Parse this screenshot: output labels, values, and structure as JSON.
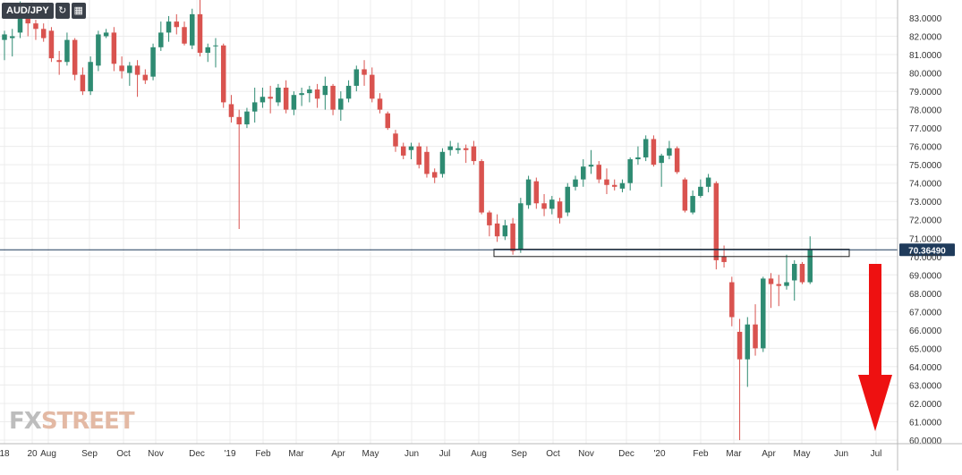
{
  "toolbar": {
    "symbol": "AUD/JPY",
    "refresh_icon": "refresh-icon",
    "calendar_icon": "calendar-icon"
  },
  "watermark": {
    "part1": "FX",
    "part2": "STREET"
  },
  "colors": {
    "up": "#2e8b72",
    "down": "#d9534f",
    "grid": "#ececec",
    "axis_text": "#333333",
    "price_line": "#1f3b5b",
    "arrow": "#ee1111"
  },
  "chart_data": {
    "type": "candlestick",
    "title": "",
    "xlabel": "",
    "ylabel": "",
    "ylim": [
      60,
      84
    ],
    "y_ticks": [
      "83.0000",
      "82.0000",
      "81.0000",
      "80.0000",
      "79.0000",
      "78.0000",
      "77.0000",
      "76.0000",
      "75.0000",
      "74.0000",
      "73.0000",
      "72.0000",
      "71.0000",
      "70.0000",
      "69.0000",
      "68.0000",
      "67.0000",
      "66.0000",
      "65.0000",
      "64.0000",
      "63.0000",
      "62.0000",
      "61.0000",
      "60.0000"
    ],
    "x_labels": [
      "18",
      "20",
      "Aug",
      "Sep",
      "Oct",
      "Nov",
      "Dec",
      "'19",
      "Feb",
      "Mar",
      "Apr",
      "May",
      "Jun",
      "Jul",
      "Aug",
      "Sep",
      "Oct",
      "Nov",
      "Dec",
      "'20",
      "Feb",
      "Mar",
      "Apr",
      "May",
      "Jun",
      "Jul"
    ],
    "current_price": 70.3649,
    "current_price_label": "70.36490",
    "support_zone": [
      70.0,
      70.4
    ],
    "candles": [
      {
        "o": 81.8,
        "h": 82.3,
        "l": 80.7,
        "c": 82.1
      },
      {
        "o": 81.9,
        "h": 82.4,
        "l": 80.9,
        "c": 82.0
      },
      {
        "o": 82.2,
        "h": 83.9,
        "l": 81.9,
        "c": 83.3
      },
      {
        "o": 83.3,
        "h": 83.6,
        "l": 82.0,
        "c": 82.7
      },
      {
        "o": 82.7,
        "h": 82.9,
        "l": 81.8,
        "c": 82.4
      },
      {
        "o": 82.4,
        "h": 82.7,
        "l": 81.7,
        "c": 81.9
      },
      {
        "o": 82.3,
        "h": 82.5,
        "l": 80.6,
        "c": 80.8
      },
      {
        "o": 80.7,
        "h": 81.2,
        "l": 79.9,
        "c": 80.6
      },
      {
        "o": 80.6,
        "h": 82.2,
        "l": 80.4,
        "c": 81.8
      },
      {
        "o": 81.8,
        "h": 81.9,
        "l": 79.6,
        "c": 79.9
      },
      {
        "o": 79.9,
        "h": 80.3,
        "l": 78.8,
        "c": 79.0
      },
      {
        "o": 79.0,
        "h": 80.9,
        "l": 78.8,
        "c": 80.6
      },
      {
        "o": 80.4,
        "h": 82.3,
        "l": 80.1,
        "c": 82.1
      },
      {
        "o": 82.0,
        "h": 82.4,
        "l": 81.9,
        "c": 82.2
      },
      {
        "o": 82.2,
        "h": 82.5,
        "l": 80.1,
        "c": 80.5
      },
      {
        "o": 80.4,
        "h": 80.9,
        "l": 79.7,
        "c": 80.1
      },
      {
        "o": 80.0,
        "h": 80.6,
        "l": 79.3,
        "c": 80.4
      },
      {
        "o": 80.4,
        "h": 80.7,
        "l": 78.7,
        "c": 79.9
      },
      {
        "o": 79.9,
        "h": 80.2,
        "l": 79.4,
        "c": 79.6
      },
      {
        "o": 79.8,
        "h": 81.6,
        "l": 79.6,
        "c": 81.4
      },
      {
        "o": 81.4,
        "h": 82.8,
        "l": 81.2,
        "c": 82.2
      },
      {
        "o": 82.2,
        "h": 83.1,
        "l": 81.7,
        "c": 82.8
      },
      {
        "o": 82.8,
        "h": 83.2,
        "l": 82.1,
        "c": 82.5
      },
      {
        "o": 82.5,
        "h": 82.8,
        "l": 81.5,
        "c": 81.6
      },
      {
        "o": 81.5,
        "h": 83.5,
        "l": 81.3,
        "c": 83.2
      },
      {
        "o": 83.2,
        "h": 84.0,
        "l": 80.9,
        "c": 81.1
      },
      {
        "o": 81.1,
        "h": 81.6,
        "l": 80.6,
        "c": 81.4
      },
      {
        "o": 81.5,
        "h": 81.9,
        "l": 80.3,
        "c": 81.5
      },
      {
        "o": 81.5,
        "h": 81.6,
        "l": 78.1,
        "c": 78.4
      },
      {
        "o": 78.3,
        "h": 78.8,
        "l": 77.3,
        "c": 77.6
      },
      {
        "o": 77.6,
        "h": 78.0,
        "l": 71.5,
        "c": 77.2
      },
      {
        "o": 77.2,
        "h": 78.1,
        "l": 77.0,
        "c": 77.9
      },
      {
        "o": 77.9,
        "h": 79.2,
        "l": 77.3,
        "c": 78.4
      },
      {
        "o": 78.4,
        "h": 79.2,
        "l": 78.1,
        "c": 78.7
      },
      {
        "o": 78.7,
        "h": 79.3,
        "l": 77.8,
        "c": 78.6
      },
      {
        "o": 78.4,
        "h": 79.4,
        "l": 78.2,
        "c": 79.2
      },
      {
        "o": 79.2,
        "h": 79.6,
        "l": 77.8,
        "c": 78.0
      },
      {
        "o": 78.0,
        "h": 79.0,
        "l": 77.7,
        "c": 78.8
      },
      {
        "o": 78.8,
        "h": 79.2,
        "l": 78.2,
        "c": 78.9
      },
      {
        "o": 78.9,
        "h": 79.3,
        "l": 78.4,
        "c": 79.1
      },
      {
        "o": 79.1,
        "h": 79.4,
        "l": 78.1,
        "c": 78.6
      },
      {
        "o": 78.8,
        "h": 79.8,
        "l": 78.0,
        "c": 79.3
      },
      {
        "o": 79.3,
        "h": 79.4,
        "l": 77.7,
        "c": 78.0
      },
      {
        "o": 78.0,
        "h": 79.0,
        "l": 77.4,
        "c": 78.6
      },
      {
        "o": 78.6,
        "h": 79.6,
        "l": 78.4,
        "c": 79.3
      },
      {
        "o": 79.3,
        "h": 80.4,
        "l": 79.0,
        "c": 80.2
      },
      {
        "o": 80.2,
        "h": 80.7,
        "l": 79.3,
        "c": 79.9
      },
      {
        "o": 79.9,
        "h": 80.3,
        "l": 78.4,
        "c": 78.6
      },
      {
        "o": 78.6,
        "h": 78.9,
        "l": 77.8,
        "c": 78.0
      },
      {
        "o": 77.8,
        "h": 77.9,
        "l": 76.9,
        "c": 77.0
      },
      {
        "o": 76.7,
        "h": 76.9,
        "l": 75.7,
        "c": 76.0
      },
      {
        "o": 76.0,
        "h": 76.2,
        "l": 75.3,
        "c": 75.5
      },
      {
        "o": 75.8,
        "h": 76.2,
        "l": 75.3,
        "c": 76.0
      },
      {
        "o": 76.0,
        "h": 76.2,
        "l": 74.8,
        "c": 75.0
      },
      {
        "o": 75.7,
        "h": 76.0,
        "l": 74.3,
        "c": 74.5
      },
      {
        "o": 74.6,
        "h": 74.8,
        "l": 74.0,
        "c": 74.3
      },
      {
        "o": 74.5,
        "h": 75.9,
        "l": 74.3,
        "c": 75.7
      },
      {
        "o": 75.8,
        "h": 76.3,
        "l": 75.5,
        "c": 76.0
      },
      {
        "o": 75.8,
        "h": 76.2,
        "l": 75.6,
        "c": 75.9
      },
      {
        "o": 75.9,
        "h": 76.1,
        "l": 75.1,
        "c": 75.8
      },
      {
        "o": 76.0,
        "h": 76.3,
        "l": 75.0,
        "c": 75.2
      },
      {
        "o": 75.2,
        "h": 75.3,
        "l": 72.3,
        "c": 72.4
      },
      {
        "o": 72.4,
        "h": 72.5,
        "l": 71.1,
        "c": 71.7
      },
      {
        "o": 71.8,
        "h": 72.3,
        "l": 70.8,
        "c": 71.1
      },
      {
        "o": 71.1,
        "h": 72.0,
        "l": 70.9,
        "c": 71.7
      },
      {
        "o": 71.8,
        "h": 72.1,
        "l": 70.1,
        "c": 70.3
      },
      {
        "o": 70.4,
        "h": 73.2,
        "l": 70.2,
        "c": 72.9
      },
      {
        "o": 72.8,
        "h": 74.4,
        "l": 72.6,
        "c": 74.2
      },
      {
        "o": 74.1,
        "h": 74.3,
        "l": 72.6,
        "c": 72.9
      },
      {
        "o": 72.9,
        "h": 73.4,
        "l": 72.2,
        "c": 72.6
      },
      {
        "o": 72.6,
        "h": 73.3,
        "l": 72.3,
        "c": 73.1
      },
      {
        "o": 73.0,
        "h": 73.2,
        "l": 71.8,
        "c": 72.1
      },
      {
        "o": 72.4,
        "h": 74.0,
        "l": 72.2,
        "c": 73.8
      },
      {
        "o": 73.8,
        "h": 74.4,
        "l": 73.6,
        "c": 74.2
      },
      {
        "o": 74.2,
        "h": 75.3,
        "l": 73.8,
        "c": 74.9
      },
      {
        "o": 74.9,
        "h": 75.8,
        "l": 74.5,
        "c": 75.0
      },
      {
        "o": 75.0,
        "h": 75.2,
        "l": 74.0,
        "c": 74.2
      },
      {
        "o": 74.2,
        "h": 74.8,
        "l": 73.4,
        "c": 73.9
      },
      {
        "o": 73.9,
        "h": 74.2,
        "l": 73.6,
        "c": 73.8
      },
      {
        "o": 73.7,
        "h": 74.2,
        "l": 73.5,
        "c": 74.0
      },
      {
        "o": 74.0,
        "h": 75.4,
        "l": 73.6,
        "c": 75.3
      },
      {
        "o": 75.3,
        "h": 76.0,
        "l": 75.0,
        "c": 75.4
      },
      {
        "o": 75.4,
        "h": 76.6,
        "l": 75.2,
        "c": 76.4
      },
      {
        "o": 76.4,
        "h": 76.6,
        "l": 74.9,
        "c": 75.0
      },
      {
        "o": 75.1,
        "h": 75.6,
        "l": 73.8,
        "c": 75.5
      },
      {
        "o": 75.5,
        "h": 76.3,
        "l": 75.3,
        "c": 75.9
      },
      {
        "o": 75.9,
        "h": 76.0,
        "l": 74.5,
        "c": 74.6
      },
      {
        "o": 74.2,
        "h": 74.3,
        "l": 72.4,
        "c": 72.5
      },
      {
        "o": 72.4,
        "h": 73.6,
        "l": 72.3,
        "c": 73.3
      },
      {
        "o": 73.3,
        "h": 74.2,
        "l": 73.2,
        "c": 73.8
      },
      {
        "o": 73.8,
        "h": 74.5,
        "l": 73.5,
        "c": 74.3
      },
      {
        "o": 74.0,
        "h": 74.1,
        "l": 69.3,
        "c": 69.8
      },
      {
        "o": 70.0,
        "h": 70.6,
        "l": 69.4,
        "c": 69.7
      },
      {
        "o": 68.6,
        "h": 68.9,
        "l": 66.2,
        "c": 66.7
      },
      {
        "o": 65.9,
        "h": 66.6,
        "l": 60.0,
        "c": 64.4
      },
      {
        "o": 64.4,
        "h": 66.7,
        "l": 62.9,
        "c": 66.3
      },
      {
        "o": 66.3,
        "h": 67.4,
        "l": 64.6,
        "c": 65.0
      },
      {
        "o": 65.0,
        "h": 68.9,
        "l": 64.8,
        "c": 68.8
      },
      {
        "o": 68.8,
        "h": 69.1,
        "l": 67.2,
        "c": 68.5
      },
      {
        "o": 68.5,
        "h": 69.0,
        "l": 67.3,
        "c": 68.4
      },
      {
        "o": 68.4,
        "h": 70.1,
        "l": 68.2,
        "c": 68.6
      },
      {
        "o": 68.7,
        "h": 69.8,
        "l": 67.6,
        "c": 69.6
      },
      {
        "o": 69.6,
        "h": 69.7,
        "l": 68.5,
        "c": 68.6
      },
      {
        "o": 68.6,
        "h": 71.1,
        "l": 68.5,
        "c": 70.4
      }
    ]
  }
}
